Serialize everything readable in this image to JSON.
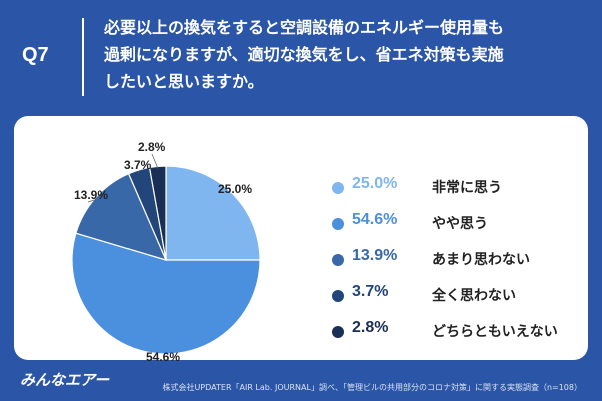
{
  "header": {
    "question_number": "Q7",
    "question_lines": [
      "必要以上の換気をすると空調設備のエネルギー使用量も",
      "過剰になりますが、適切な換気をし、省エネ対策も実施",
      "したいと思いますか。"
    ]
  },
  "chart_data": {
    "type": "pie",
    "slices": [
      {
        "label": "非常に思う",
        "value": 25.0,
        "display": "25.0%",
        "color": "#7fb6ef"
      },
      {
        "label": "やや思う",
        "value": 54.6,
        "display": "54.6%",
        "color": "#4b8fdf"
      },
      {
        "label": "あまり思わない",
        "value": 13.9,
        "display": "13.9%",
        "color": "#3968a8"
      },
      {
        "label": "全く思わない",
        "value": 3.7,
        "display": "3.7%",
        "color": "#23467a"
      },
      {
        "label": "どちらともいえない",
        "value": 2.8,
        "display": "2.8%",
        "color": "#1a2f55"
      }
    ]
  },
  "footer": {
    "logo_text": "みんなエアー",
    "credit": "株式会社UPDATER「AIR Lab. JOURNAL」調べ、「管理ビルの共用部分のコロナ対策」に関する実態調査（n=108）"
  }
}
